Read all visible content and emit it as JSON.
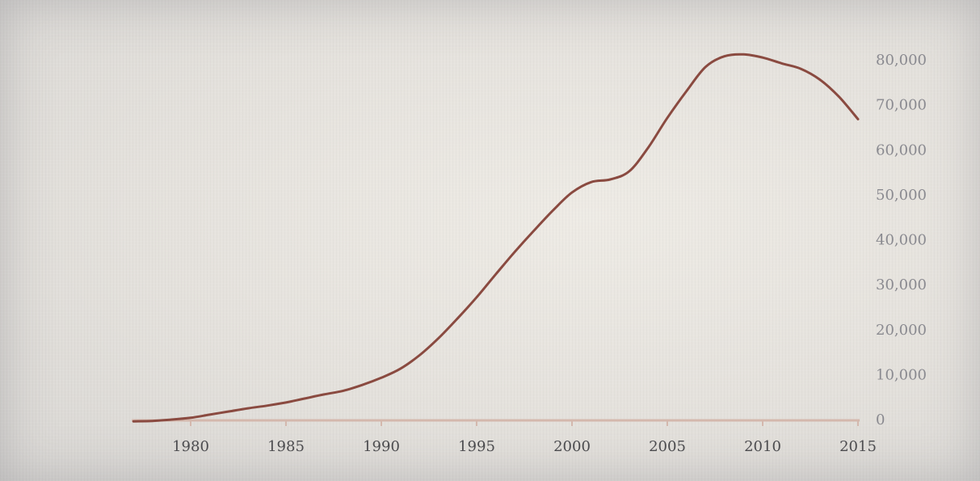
{
  "chart_data": {
    "type": "line",
    "title": "",
    "xlabel": "",
    "ylabel": "",
    "xlim": [
      1977,
      2015
    ],
    "ylim": [
      0,
      80000
    ],
    "x_ticks": [
      {
        "value": 1980,
        "label": "1980"
      },
      {
        "value": 1985,
        "label": "1985"
      },
      {
        "value": 1990,
        "label": "1990"
      },
      {
        "value": 1995,
        "label": "1995"
      },
      {
        "value": 2000,
        "label": "2000"
      },
      {
        "value": 2005,
        "label": "2005"
      },
      {
        "value": 2010,
        "label": "2010"
      },
      {
        "value": 2015,
        "label": "2015"
      }
    ],
    "y_ticks": [
      {
        "value": 0,
        "label": "0"
      },
      {
        "value": 10000,
        "label": "10,000"
      },
      {
        "value": 20000,
        "label": "20,000"
      },
      {
        "value": 30000,
        "label": "30,000"
      },
      {
        "value": 40000,
        "label": "40,000"
      },
      {
        "value": 50000,
        "label": "50,000"
      },
      {
        "value": 60000,
        "label": "60,000"
      },
      {
        "value": 70000,
        "label": "70,000"
      },
      {
        "value": 80000,
        "label": "80,000"
      }
    ],
    "y_axis_side": "right",
    "grid": false,
    "legend": "none",
    "series": [
      {
        "color": "#8a4a40",
        "x": [
          1977,
          1978,
          1979,
          1980,
          1981,
          1982,
          1983,
          1984,
          1985,
          1986,
          1987,
          1988,
          1989,
          1990,
          1991,
          1992,
          1993,
          1994,
          1995,
          1996,
          1997,
          1998,
          1999,
          2000,
          2001,
          2002,
          2003,
          2004,
          2005,
          2006,
          2007,
          2008,
          2009,
          2010,
          2011,
          2012,
          2013,
          2014,
          2015
        ],
        "y": [
          -400,
          -300,
          0,
          400,
          1100,
          1800,
          2500,
          3100,
          3800,
          4700,
          5600,
          6400,
          7700,
          9300,
          11300,
          14300,
          18100,
          22500,
          27200,
          32300,
          37300,
          42000,
          46500,
          50500,
          52800,
          53400,
          55200,
          60500,
          67100,
          73000,
          78400,
          80800,
          81200,
          80500,
          79200,
          78000,
          75600,
          71800,
          66800
        ]
      }
    ],
    "colors": {
      "axis": "#d4b8ad",
      "x_tick_label": "#4b4b4e",
      "y_tick_label": "#8a8a90"
    }
  }
}
